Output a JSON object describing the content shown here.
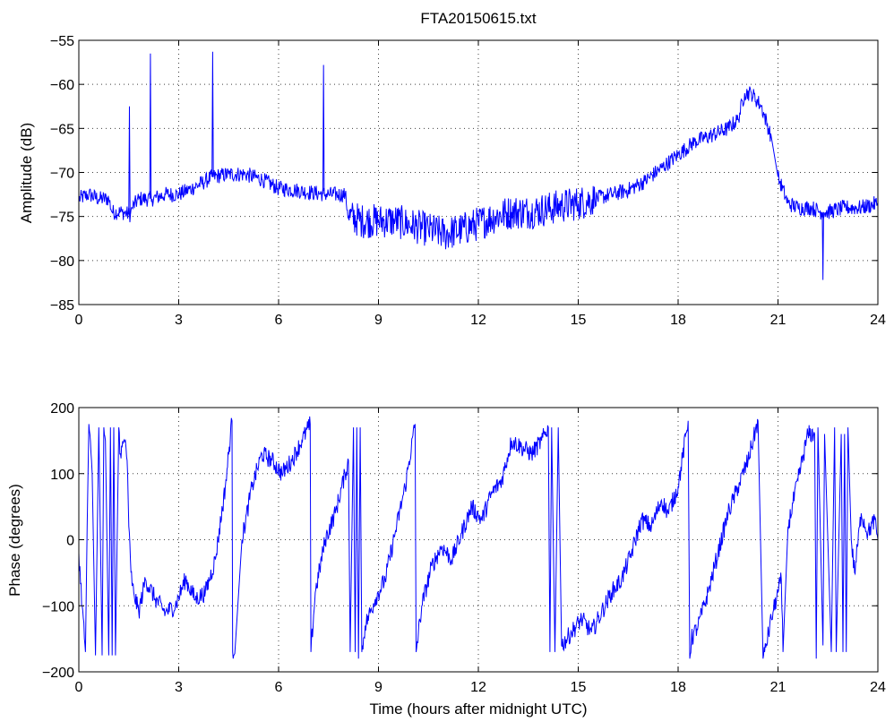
{
  "figure": {
    "title": "FTA20150615.txt",
    "line_color": "#0000ff"
  },
  "chart_data": [
    {
      "type": "line",
      "title": "FTA20150615.txt",
      "xlabel": "",
      "ylabel": "Amplitude (dB)",
      "xlim": [
        0,
        24
      ],
      "ylim": [
        -85,
        -55
      ],
      "xticks": [
        0,
        3,
        6,
        9,
        12,
        15,
        18,
        21,
        24
      ],
      "yticks": [
        -85,
        -80,
        -75,
        -70,
        -65,
        -60,
        -55
      ],
      "xtick_labels": [
        "0",
        "3",
        "6",
        "9",
        "12",
        "15",
        "18",
        "21",
        "24"
      ],
      "ytick_labels": [
        "−85",
        "−80",
        "−75",
        "−70",
        "−65",
        "−60",
        "−55"
      ],
      "grid": true,
      "color": "#0000ff",
      "series": [
        {
          "x": [
            0,
            0.3,
            0.6,
            0.9,
            1.0,
            1.3,
            1.55,
            1.6,
            1.8,
            2.2,
            2.6,
            3.0,
            3.4,
            3.8,
            4.0,
            4.5,
            5.0,
            5.5,
            6.0,
            6.5,
            7.0,
            7.5,
            8.0,
            8.1,
            8.5,
            9.0,
            9.5,
            10.0,
            10.5,
            11.0,
            11.5,
            12.0,
            12.5,
            13.0,
            13.5,
            14.0,
            14.5,
            15.0,
            15.5,
            16.0,
            16.5,
            17.0,
            17.5,
            18.0,
            18.5,
            19.0,
            19.5,
            19.8,
            20.0,
            20.2,
            20.5,
            20.8,
            21.0,
            21.3,
            21.6,
            22.0,
            22.3,
            22.5,
            23.0,
            23.5,
            24.0
          ],
          "y": [
            -73,
            -72.5,
            -73,
            -73,
            -74.5,
            -74.5,
            -74.8,
            -74,
            -73,
            -73,
            -72.5,
            -72.5,
            -71.8,
            -71,
            -70.5,
            -70.2,
            -70.2,
            -70.8,
            -71.8,
            -72,
            -72.3,
            -72.5,
            -72.5,
            -75,
            -75.5,
            -75.5,
            -75.5,
            -76,
            -76.5,
            -77,
            -76.5,
            -75.8,
            -75,
            -74.5,
            -74.5,
            -74.2,
            -73.8,
            -73.5,
            -73,
            -72.5,
            -72,
            -71,
            -69.5,
            -68,
            -66.5,
            -65.8,
            -65,
            -64,
            -61,
            -61,
            -62.5,
            -66,
            -70.5,
            -73.5,
            -74,
            -74,
            -74.5,
            -74.5,
            -74,
            -74,
            -73.5
          ],
          "spikes": [
            {
              "x": 1.52,
              "y": -62.5
            },
            {
              "x": 2.15,
              "y": -56.5
            },
            {
              "x": 4.02,
              "y": -56.3
            },
            {
              "x": 7.35,
              "y": -57.8
            },
            {
              "x": 22.35,
              "y": -82.2
            }
          ]
        }
      ]
    },
    {
      "type": "line",
      "title": "",
      "xlabel": "Time (hours after midnight UTC)",
      "ylabel": "Phase (degrees)",
      "xlim": [
        0,
        24
      ],
      "ylim": [
        -200,
        200
      ],
      "xticks": [
        0,
        3,
        6,
        9,
        12,
        15,
        18,
        21,
        24
      ],
      "yticks": [
        -200,
        -100,
        0,
        100,
        200
      ],
      "xtick_labels": [
        "0",
        "3",
        "6",
        "9",
        "12",
        "15",
        "18",
        "21",
        "24"
      ],
      "ytick_labels": [
        "−200",
        "−100",
        "0",
        "100",
        "200"
      ],
      "grid": true,
      "color": "#0000ff",
      "series": [
        {
          "x": [
            0,
            0.1,
            0.2,
            0.25,
            0.3,
            0.4,
            0.5,
            0.6,
            0.7,
            0.75,
            0.8,
            0.9,
            0.95,
            1.0,
            1.05,
            1.1,
            1.2,
            1.25,
            1.3,
            1.4,
            1.45,
            1.5,
            1.55,
            1.6,
            1.65,
            1.8,
            2.0,
            2.3,
            2.6,
            2.9,
            3.2,
            3.5,
            3.8,
            4.1,
            4.4,
            4.6,
            4.62,
            4.7,
            4.9,
            5.2,
            5.5,
            5.8,
            6.1,
            6.4,
            6.7,
            6.95,
            6.97,
            7.1,
            7.4,
            7.7,
            8.0,
            8.1,
            8.15,
            8.25,
            8.3,
            8.35,
            8.4,
            8.45,
            8.5,
            8.6,
            8.9,
            9.2,
            9.5,
            9.8,
            10.1,
            10.13,
            10.3,
            10.6,
            10.9,
            11.2,
            11.5,
            11.8,
            12.1,
            12.4,
            12.7,
            13.0,
            13.3,
            13.6,
            13.9,
            14.1,
            14.15,
            14.2,
            14.3,
            14.4,
            14.5,
            14.8,
            15.1,
            15.4,
            15.7,
            16.0,
            16.3,
            16.6,
            16.9,
            17.2,
            17.5,
            17.7,
            18.0,
            18.3,
            18.35,
            18.4,
            18.6,
            18.9,
            19.2,
            19.5,
            19.8,
            20.1,
            20.4,
            20.55,
            20.6,
            20.8,
            21.0,
            21.1,
            21.15,
            21.3,
            21.6,
            21.9,
            22.1,
            22.15,
            22.2,
            22.35,
            22.4,
            22.6,
            22.7,
            22.75,
            22.9,
            22.95,
            23.0,
            23.05,
            23.1,
            23.2,
            23.3,
            23.5,
            23.7,
            23.9,
            24.0
          ],
          "y": [
            -20,
            -100,
            -170,
            20,
            175,
            100,
            -175,
            170,
            -175,
            170,
            150,
            -175,
            170,
            -175,
            170,
            -175,
            170,
            130,
            140,
            150,
            120,
            20,
            -30,
            -70,
            -80,
            -110,
            -60,
            -90,
            -110,
            -100,
            -60,
            -90,
            -80,
            -30,
            80,
            180,
            -170,
            -160,
            0,
            80,
            130,
            120,
            100,
            120,
            150,
            175,
            -170,
            -80,
            0,
            40,
            100,
            120,
            -170,
            170,
            -170,
            170,
            -180,
            170,
            -170,
            -130,
            -90,
            -60,
            10,
            80,
            175,
            -170,
            -100,
            -40,
            -10,
            -30,
            10,
            50,
            30,
            70,
            90,
            150,
            140,
            130,
            150,
            170,
            -170,
            170,
            -170,
            170,
            -160,
            -140,
            -120,
            -140,
            -110,
            -80,
            -60,
            -20,
            30,
            20,
            60,
            40,
            80,
            180,
            -180,
            -150,
            -130,
            -80,
            -20,
            40,
            80,
            120,
            180,
            -180,
            -170,
            -120,
            -80,
            -60,
            -170,
            20,
            90,
            160,
            160,
            -180,
            170,
            -160,
            160,
            -170,
            170,
            -170,
            160,
            -170,
            160,
            -170,
            170,
            0,
            -50,
            40,
            10,
            30,
            0
          ]
        }
      ]
    }
  ]
}
